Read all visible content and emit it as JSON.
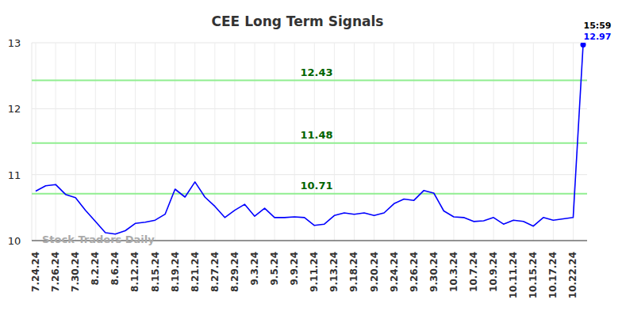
{
  "chart_data": {
    "type": "line",
    "title": "CEE Long Term Signals",
    "watermark": "Stock Traders Daily",
    "categories": [
      "7.24.24",
      null,
      "7.26.24",
      null,
      "7.30.24",
      null,
      "8.2.24",
      null,
      "8.6.24",
      null,
      "8.12.24",
      null,
      "8.15.24",
      null,
      "8.19.24",
      null,
      "8.21.24",
      null,
      "8.27.24",
      null,
      "8.29.24",
      null,
      "9.3.24",
      null,
      "9.5.24",
      null,
      "9.9.24",
      null,
      "9.11.24",
      null,
      "9.13.24",
      null,
      "9.18.24",
      null,
      "9.20.24",
      null,
      "9.24.24",
      null,
      "9.26.24",
      null,
      "9.30.24",
      null,
      "10.3.24",
      null,
      "10.7.24",
      null,
      "10.9.24",
      null,
      "10.11.24",
      null,
      "10.15.24",
      null,
      "10.17.24",
      null,
      "10.22.24",
      null
    ],
    "values": [
      10.75,
      10.83,
      10.85,
      10.7,
      10.65,
      10.46,
      10.29,
      10.12,
      10.1,
      10.15,
      10.26,
      10.28,
      10.31,
      10.4,
      10.78,
      10.66,
      10.89,
      10.66,
      10.52,
      10.35,
      10.46,
      10.55,
      10.37,
      10.49,
      10.35,
      10.35,
      10.36,
      10.35,
      10.23,
      10.25,
      10.38,
      10.42,
      10.4,
      10.42,
      10.38,
      10.42,
      10.56,
      10.63,
      10.61,
      10.76,
      10.72,
      10.45,
      10.36,
      10.35,
      10.29,
      10.3,
      10.35,
      10.25,
      10.31,
      10.29,
      10.22,
      10.35,
      10.31,
      10.33,
      10.35,
      12.97
    ],
    "color": "#0000ff",
    "ylim": [
      10,
      13
    ],
    "yticks": [
      10,
      11,
      12,
      13
    ],
    "grid": true,
    "reference_lines": [
      {
        "value": 12.43,
        "label": "12.43",
        "color": "#90ee90"
      },
      {
        "value": 11.48,
        "label": "11.48",
        "color": "#90ee90"
      },
      {
        "value": 10.71,
        "label": "10.71",
        "color": "#90ee90"
      }
    ],
    "annotations": [
      {
        "text": "15:59"
      }
    ]
  }
}
